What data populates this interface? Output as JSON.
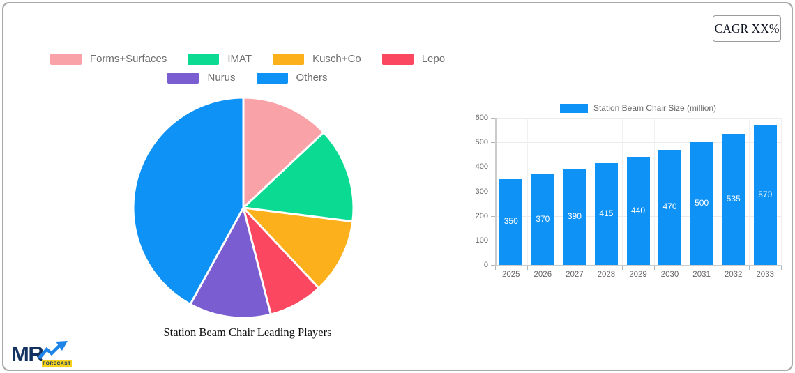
{
  "cagr": {
    "label": "CAGR XX%"
  },
  "logo": {
    "brand": "MR",
    "badge": "FORECAST"
  },
  "chart_data": [
    {
      "type": "pie",
      "title": "Station Beam Chair Leading Players",
      "labels": [
        "Forms+Surfaces",
        "IMAT",
        "Kusch+Co",
        "Lepo",
        "Nurus",
        "Others"
      ],
      "values": [
        13,
        14,
        11,
        8,
        12,
        42
      ],
      "unit": "percent-share",
      "colors": [
        "#f9a2a7",
        "#0ada92",
        "#fcb01b",
        "#fc4760",
        "#7a5dd1",
        "#0f92f5"
      ],
      "legend_position": "top",
      "legend_rows": [
        4,
        2
      ],
      "slice_gap_color": "#ffffff",
      "start_angle": "12-oclock-clockwise"
    },
    {
      "type": "bar",
      "categories": [
        "2025",
        "2026",
        "2027",
        "2028",
        "2029",
        "2030",
        "2031",
        "2032",
        "2033"
      ],
      "series": [
        {
          "name": "Station Beam Chair Size (million)",
          "values": [
            350,
            370,
            390,
            415,
            440,
            470,
            500,
            535,
            570
          ],
          "color": "#0f92f5"
        }
      ],
      "ylim": [
        0,
        600
      ],
      "yticks": [
        0,
        100,
        200,
        300,
        400,
        500,
        600
      ],
      "grid": true,
      "legend_position": "top",
      "bar_label_color": "#ffffff",
      "axis_label_color": "#666666"
    }
  ]
}
